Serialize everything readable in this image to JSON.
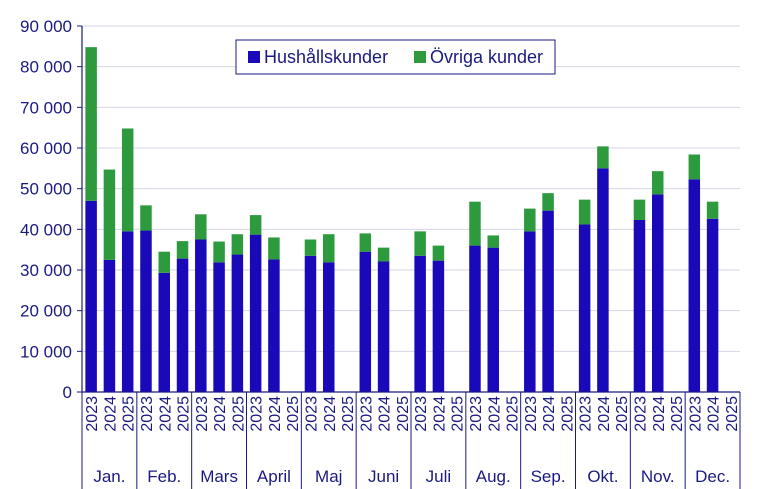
{
  "chart_data": {
    "type": "bar",
    "stacked": true,
    "title": "",
    "xlabel": "",
    "ylabel": "",
    "ylim": [
      0,
      90000
    ],
    "yticks": [
      "0",
      "10 000",
      "20 000",
      "30 000",
      "40 000",
      "50 000",
      "60 000",
      "70 000",
      "80 000",
      "90 000"
    ],
    "grid": true,
    "legend_position": "top-center",
    "colors": {
      "Hushållskunder": "#1a09b8",
      "Övriga kunder": "#2e9a3e",
      "axis": "#1a1a80",
      "grid": "#d6d6e6"
    },
    "months": [
      "Jan.",
      "Feb.",
      "Mars",
      "April",
      "Maj",
      "Juni",
      "Juli",
      "Aug.",
      "Sep.",
      "Okt.",
      "Nov.",
      "Dec."
    ],
    "years": [
      "2023",
      "2024",
      "2025"
    ],
    "series": [
      {
        "name": "Hushållskunder",
        "values": [
          47000,
          32500,
          39500,
          39700,
          29300,
          32800,
          37500,
          31900,
          33800,
          38700,
          32600,
          null,
          33500,
          31900,
          null,
          34500,
          32100,
          null,
          33500,
          32300,
          null,
          36000,
          35500,
          null,
          39500,
          44600,
          null,
          41200,
          55000,
          null,
          42300,
          48600,
          null,
          52300,
          42600,
          null
        ]
      },
      {
        "name": "Övriga kunder",
        "values": [
          37800,
          22200,
          25300,
          6200,
          5200,
          4300,
          6200,
          5100,
          5000,
          4800,
          5400,
          null,
          4000,
          6900,
          null,
          4500,
          3400,
          null,
          6000,
          3700,
          null,
          10800,
          3000,
          null,
          5600,
          4300,
          null,
          6100,
          5400,
          null,
          5000,
          5700,
          null,
          6100,
          4200,
          null
        ]
      }
    ]
  }
}
